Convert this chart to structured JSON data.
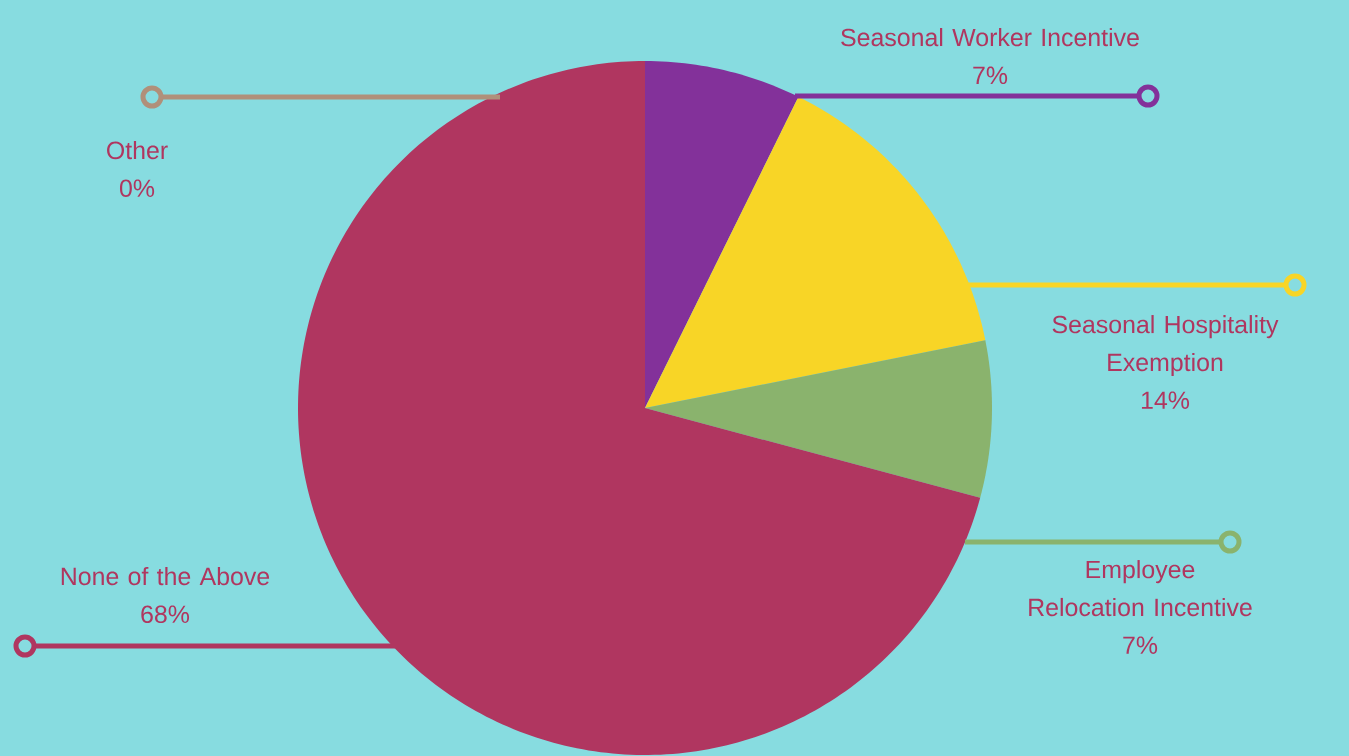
{
  "chart_data": {
    "type": "pie",
    "categories": [
      "Seasonal Worker Incentive",
      "Seasonal Hospitality Exemption",
      "Employee Relocation Incentive",
      "None of the Above",
      "Other"
    ],
    "values": [
      7,
      14,
      7,
      68,
      0
    ],
    "colors": [
      "#83319a",
      "#f8d526",
      "#8ab36d",
      "#b03660",
      "#b0907a"
    ],
    "value_labels": [
      "7%",
      "14%",
      "7%",
      "68%",
      "0%"
    ],
    "legend": "right"
  }
}
